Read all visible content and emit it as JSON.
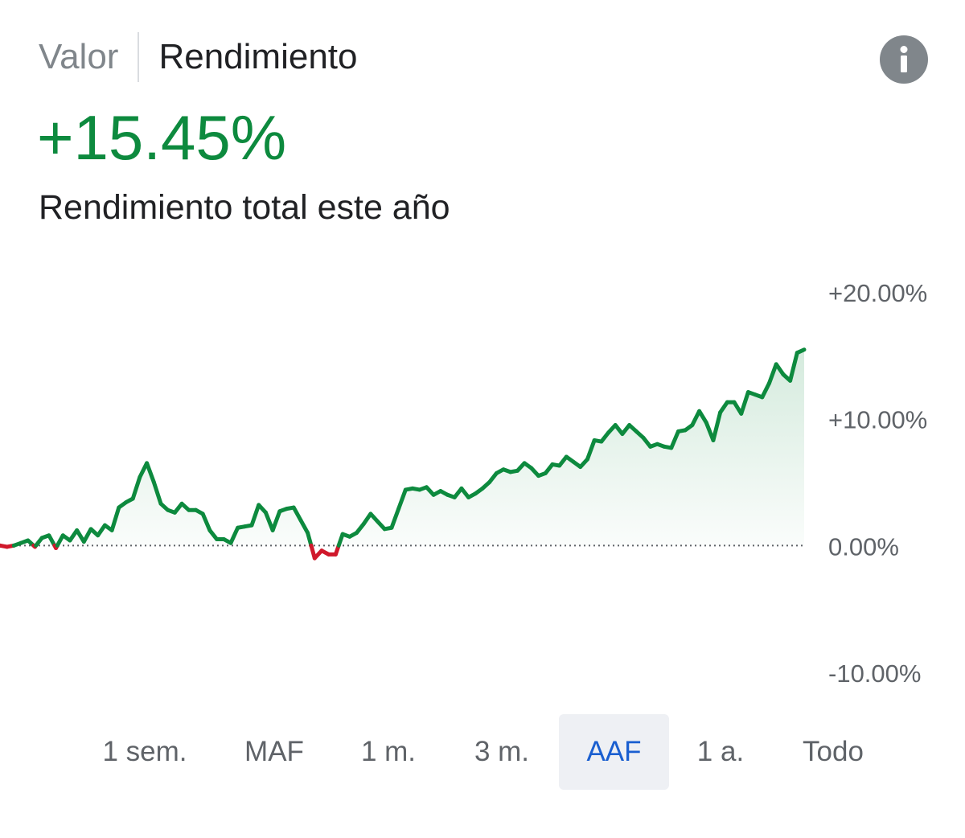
{
  "tabs": {
    "value_label": "Valor",
    "return_label": "Rendimiento"
  },
  "summary": {
    "return_value": "+15.45%",
    "description": "Rendimiento total este año"
  },
  "ranges": [
    "1 sem.",
    "MAF",
    "1 m.",
    "3 m.",
    "AAF",
    "1 a.",
    "Todo"
  ],
  "selected_range": "AAF",
  "colors": {
    "positive": "#0d8a3e",
    "negative": "#d0182b",
    "axis_text": "#5f6368",
    "selected_range": "#1a5fd0"
  },
  "chart_data": {
    "type": "line",
    "title": "",
    "xlabel": "",
    "ylabel": "",
    "ylim": [
      -10,
      20
    ],
    "y_ticks": [
      "+20.00%",
      "+10.00%",
      "0.00%",
      "-10.00%"
    ],
    "y_tick_values": [
      20,
      10,
      0,
      -10
    ],
    "baseline": 0,
    "x_unit": "trading day index",
    "series": [
      {
        "values": [
          0.0,
          -0.1,
          0.0,
          0.2,
          0.4,
          -0.1,
          0.6,
          0.8,
          -0.2,
          0.8,
          0.4,
          1.2,
          0.3,
          1.3,
          0.8,
          1.6,
          1.2,
          3.0,
          3.4,
          3.7,
          5.4,
          6.5,
          5.0,
          3.3,
          2.8,
          2.6,
          3.3,
          2.8,
          2.8,
          2.5,
          1.2,
          0.5,
          0.5,
          0.2,
          1.4,
          1.5,
          1.6,
          3.2,
          2.6,
          1.2,
          2.7,
          2.9,
          3.0,
          2.0,
          1.0,
          -1.0,
          -0.4,
          -0.7,
          -0.7,
          0.9,
          0.7,
          1.0,
          1.7,
          2.5,
          1.9,
          1.3,
          1.4,
          2.9,
          4.4,
          4.5,
          4.4,
          4.6,
          4.0,
          4.3,
          4.0,
          3.8,
          4.5,
          3.8,
          4.1,
          4.5,
          5.0,
          5.7,
          6.0,
          5.8,
          5.9,
          6.5,
          6.1,
          5.5,
          5.7,
          6.4,
          6.3,
          7.0,
          6.6,
          6.2,
          6.8,
          8.3,
          8.2,
          8.9,
          9.5,
          8.8,
          9.5,
          9.0,
          8.5,
          7.8,
          8.0,
          7.8,
          7.7,
          9.0,
          9.1,
          9.5,
          10.6,
          9.7,
          8.3,
          10.5,
          11.3,
          11.3,
          10.4,
          12.1,
          11.9,
          11.7,
          12.8,
          14.3,
          13.5,
          13.0,
          15.2,
          15.45
        ]
      }
    ]
  }
}
